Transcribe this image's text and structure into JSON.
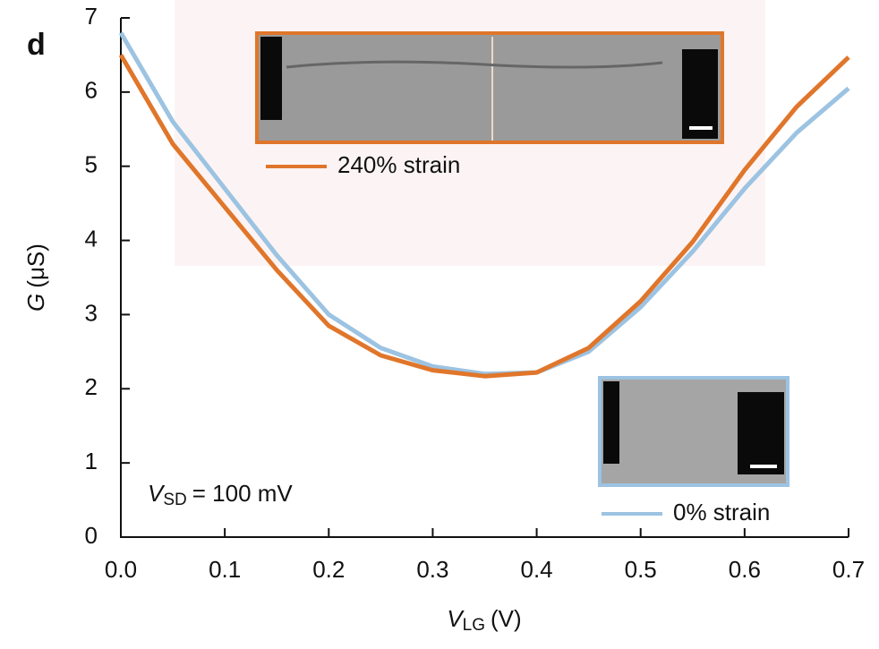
{
  "chart_data": {
    "type": "line",
    "panel_label": "d",
    "xlabel": {
      "symbol": "V",
      "subscript": "LG",
      "unit": "(V)"
    },
    "ylabel": {
      "symbol": "G",
      "unit": "(μS)"
    },
    "annotation": {
      "symbol": "V",
      "subscript": "SD",
      "text": "= 100  mV"
    },
    "x": [
      0,
      0.05,
      0.1,
      0.15,
      0.2,
      0.25,
      0.3,
      0.35,
      0.4,
      0.45,
      0.5,
      0.55,
      0.6,
      0.65,
      0.7
    ],
    "series": [
      {
        "name": "0% strain",
        "color": "#9cc3e2",
        "values": [
          6.8,
          5.6,
          4.7,
          3.8,
          3.0,
          2.55,
          2.3,
          2.2,
          2.22,
          2.5,
          3.1,
          3.85,
          4.7,
          5.45,
          6.05
        ]
      },
      {
        "name": "240% strain",
        "color": "#e0762b",
        "values": [
          6.5,
          5.3,
          4.45,
          3.6,
          2.85,
          2.45,
          2.25,
          2.17,
          2.22,
          2.55,
          3.18,
          3.98,
          4.95,
          5.8,
          6.47
        ]
      }
    ],
    "xlim": [
      0,
      0.7
    ],
    "ylim": [
      0,
      7
    ],
    "xticks": [
      {
        "value": 0,
        "label": "0.0"
      },
      0.1,
      0.2,
      0.3,
      0.4,
      0.5,
      0.6,
      0.7
    ],
    "yticks": [
      0,
      1,
      2,
      3,
      4,
      5,
      6,
      7
    ],
    "grid": false
  }
}
